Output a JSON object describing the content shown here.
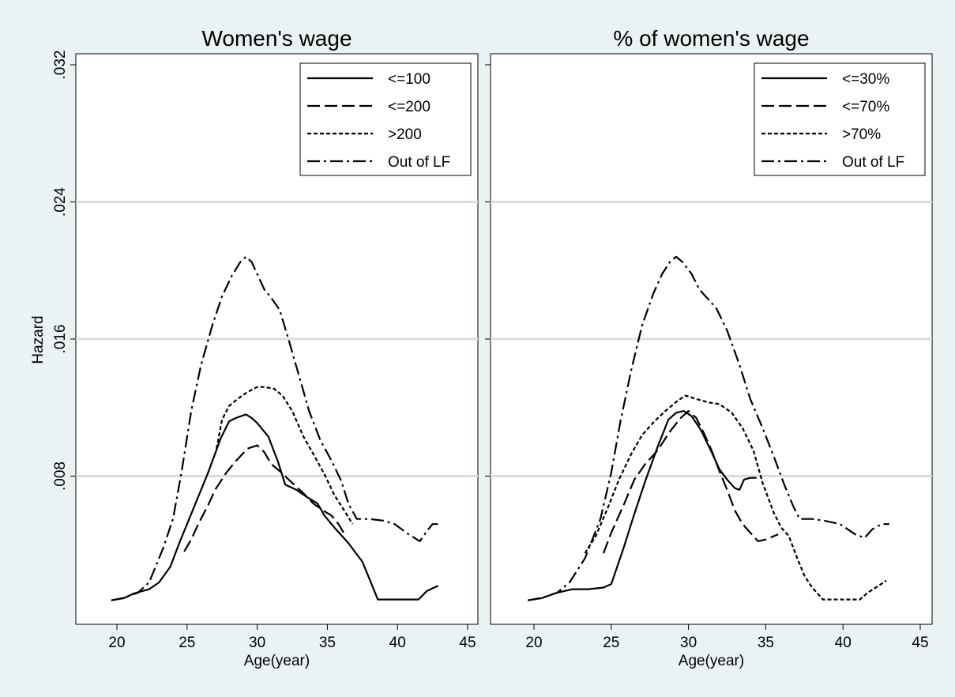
{
  "chart_data": [
    {
      "type": "line",
      "title": "Women's wage",
      "xlabel": "Age(year)",
      "ylabel": "Hazard",
      "xlim": [
        17.5,
        45.5
      ],
      "ylim": [
        0,
        0.0325
      ],
      "xticks": [
        20,
        25,
        30,
        35,
        40,
        45
      ],
      "xtick_labels": [
        "20",
        "25",
        "30",
        "35",
        "40",
        "45"
      ],
      "yticks": [
        0.008,
        0.016,
        0.024,
        0.032
      ],
      "ytick_labels": [
        ".008",
        ".016",
        ".024",
        ".032"
      ],
      "grid": true,
      "legend_position": "top-right",
      "series": [
        {
          "name": "<=100",
          "style": "solid",
          "points": [
            [
              19.6,
              0.00075
            ],
            [
              20.5,
              0.00088
            ],
            [
              21.2,
              0.00115
            ],
            [
              22.3,
              0.0014
            ],
            [
              23.0,
              0.0018
            ],
            [
              23.8,
              0.0027
            ],
            [
              24.5,
              0.0042
            ],
            [
              25.5,
              0.0062
            ],
            [
              26.5,
              0.0082
            ],
            [
              27.4,
              0.0102
            ],
            [
              28.0,
              0.0112
            ],
            [
              28.5,
              0.0114
            ],
            [
              29.2,
              0.0116
            ],
            [
              29.6,
              0.0114
            ],
            [
              30.0,
              0.0111
            ],
            [
              30.8,
              0.0103
            ],
            [
              31.5,
              0.0088
            ],
            [
              32.0,
              0.0075
            ],
            [
              32.8,
              0.0072
            ],
            [
              33.5,
              0.0068
            ],
            [
              34.3,
              0.0064
            ],
            [
              34.8,
              0.0057
            ],
            [
              35.5,
              0.005
            ],
            [
              36.5,
              0.0041
            ],
            [
              37.5,
              0.003
            ],
            [
              38.0,
              0.002
            ],
            [
              38.6,
              0.0008
            ],
            [
              39.5,
              0.0008
            ],
            [
              40.5,
              0.0008
            ],
            [
              41.5,
              0.0008
            ],
            [
              42.1,
              0.0013
            ],
            [
              42.9,
              0.0016
            ]
          ]
        },
        {
          "name": "<=200",
          "style": "dashed",
          "points": [
            [
              24.8,
              0.0036
            ],
            [
              25.3,
              0.0043
            ],
            [
              25.8,
              0.0052
            ],
            [
              26.5,
              0.0063
            ],
            [
              27.0,
              0.0072
            ],
            [
              27.8,
              0.0082
            ],
            [
              28.5,
              0.0089
            ],
            [
              29.3,
              0.0096
            ],
            [
              30.0,
              0.0098
            ],
            [
              30.5,
              0.0094
            ],
            [
              31.0,
              0.0087
            ],
            [
              31.6,
              0.0083
            ],
            [
              32.5,
              0.0076
            ],
            [
              33.3,
              0.007
            ],
            [
              34.0,
              0.0064
            ],
            [
              34.7,
              0.006
            ],
            [
              35.3,
              0.0057
            ],
            [
              35.8,
              0.0052
            ],
            [
              36.3,
              0.0045
            ]
          ]
        },
        {
          "name": ">200",
          "style": "dotted",
          "points": [
            [
              27.1,
              0.0096
            ],
            [
              27.5,
              0.0113
            ],
            [
              28.0,
              0.0121
            ],
            [
              28.6,
              0.0125
            ],
            [
              29.3,
              0.0129
            ],
            [
              30.0,
              0.0132
            ],
            [
              30.5,
              0.0132
            ],
            [
              31.2,
              0.0131
            ],
            [
              31.8,
              0.0127
            ],
            [
              32.5,
              0.0118
            ],
            [
              33.3,
              0.0103
            ],
            [
              34.0,
              0.0093
            ],
            [
              34.8,
              0.0081
            ],
            [
              35.5,
              0.0069
            ],
            [
              36.2,
              0.006
            ],
            [
              36.8,
              0.0052
            ]
          ]
        },
        {
          "name": "Out of LF",
          "style": "dashdot",
          "points": [
            [
              19.6,
              0.00075
            ],
            [
              20.5,
              0.0009
            ],
            [
              21.5,
              0.0012
            ],
            [
              22.3,
              0.0018
            ],
            [
              23.3,
              0.0038
            ],
            [
              24.0,
              0.0055
            ],
            [
              24.6,
              0.0082
            ],
            [
              25.3,
              0.0118
            ],
            [
              26.0,
              0.0145
            ],
            [
              26.8,
              0.0168
            ],
            [
              27.5,
              0.0185
            ],
            [
              28.2,
              0.0197
            ],
            [
              28.8,
              0.0205
            ],
            [
              29.2,
              0.0208
            ],
            [
              29.6,
              0.0205
            ],
            [
              30.0,
              0.0198
            ],
            [
              30.5,
              0.0189
            ],
            [
              31.0,
              0.0184
            ],
            [
              31.6,
              0.0177
            ],
            [
              32.3,
              0.0158
            ],
            [
              33.0,
              0.0138
            ],
            [
              33.7,
              0.0118
            ],
            [
              34.5,
              0.0101
            ],
            [
              35.3,
              0.0089
            ],
            [
              36.0,
              0.0077
            ],
            [
              36.5,
              0.0064
            ],
            [
              37.1,
              0.0055
            ],
            [
              38.0,
              0.0055
            ],
            [
              39.0,
              0.0054
            ],
            [
              39.8,
              0.0052
            ],
            [
              40.8,
              0.0046
            ],
            [
              41.6,
              0.0042
            ],
            [
              42.1,
              0.0048
            ],
            [
              42.5,
              0.0052
            ],
            [
              43.0,
              0.0052
            ]
          ]
        }
      ]
    },
    {
      "type": "line",
      "title": "% of women's wage",
      "xlabel": "Age(year)",
      "ylabel": "",
      "xlim": [
        17.5,
        45.5
      ],
      "ylim": [
        0,
        0.0325
      ],
      "xticks": [
        20,
        25,
        30,
        35,
        40,
        45
      ],
      "xtick_labels": [
        "20",
        "25",
        "30",
        "35",
        "40",
        "45"
      ],
      "yticks": [
        0.008,
        0.016,
        0.024,
        0.032
      ],
      "grid": true,
      "legend_position": "top-right",
      "series": [
        {
          "name": "<=30%",
          "style": "solid",
          "points": [
            [
              19.6,
              0.00075
            ],
            [
              20.5,
              0.00088
            ],
            [
              21.5,
              0.0012
            ],
            [
              22.5,
              0.0014
            ],
            [
              23.5,
              0.0014
            ],
            [
              24.5,
              0.0015
            ],
            [
              25.0,
              0.0017
            ],
            [
              25.8,
              0.0038
            ],
            [
              26.5,
              0.0058
            ],
            [
              27.2,
              0.0077
            ],
            [
              28.0,
              0.0097
            ],
            [
              28.7,
              0.0113
            ],
            [
              29.2,
              0.0117
            ],
            [
              29.7,
              0.0118
            ],
            [
              30.2,
              0.0115
            ],
            [
              30.8,
              0.0107
            ],
            [
              31.5,
              0.0094
            ],
            [
              32.0,
              0.0084
            ],
            [
              32.5,
              0.0078
            ],
            [
              33.0,
              0.0073
            ],
            [
              33.3,
              0.0072
            ],
            [
              33.6,
              0.0078
            ],
            [
              34.0,
              0.0079
            ],
            [
              34.4,
              0.0079
            ]
          ]
        },
        {
          "name": "<=70%",
          "style": "dashed",
          "points": [
            [
              24.5,
              0.0035
            ],
            [
              25.0,
              0.0047
            ],
            [
              25.8,
              0.0063
            ],
            [
              26.5,
              0.0078
            ],
            [
              27.2,
              0.0087
            ],
            [
              28.0,
              0.0095
            ],
            [
              28.8,
              0.0106
            ],
            [
              29.5,
              0.0114
            ],
            [
              30.0,
              0.0118
            ],
            [
              30.5,
              0.0114
            ],
            [
              31.0,
              0.0105
            ],
            [
              31.5,
              0.0095
            ],
            [
              32.0,
              0.0083
            ],
            [
              32.5,
              0.0072
            ],
            [
              33.0,
              0.006
            ],
            [
              33.5,
              0.0052
            ],
            [
              34.0,
              0.0047
            ],
            [
              34.5,
              0.0042
            ],
            [
              35.0,
              0.0043
            ],
            [
              35.8,
              0.0046
            ]
          ]
        },
        {
          "name": ">70%",
          "style": "dotted",
          "points": [
            [
              23.3,
              0.0035
            ],
            [
              24.0,
              0.0045
            ],
            [
              24.8,
              0.0062
            ],
            [
              25.5,
              0.0078
            ],
            [
              26.3,
              0.0093
            ],
            [
              27.0,
              0.0104
            ],
            [
              27.8,
              0.0112
            ],
            [
              28.5,
              0.0118
            ],
            [
              29.3,
              0.0124
            ],
            [
              29.8,
              0.0127
            ],
            [
              30.5,
              0.0125
            ],
            [
              31.3,
              0.0123
            ],
            [
              32.0,
              0.0122
            ],
            [
              32.8,
              0.0117
            ],
            [
              33.5,
              0.0108
            ],
            [
              34.2,
              0.0095
            ],
            [
              34.8,
              0.0076
            ],
            [
              35.5,
              0.0059
            ],
            [
              36.0,
              0.005
            ],
            [
              36.5,
              0.0045
            ],
            [
              37.0,
              0.0033
            ],
            [
              37.5,
              0.0022
            ],
            [
              38.0,
              0.0015
            ],
            [
              38.7,
              0.0008
            ],
            [
              39.5,
              0.0008
            ],
            [
              40.5,
              0.0008
            ],
            [
              41.1,
              0.0008
            ],
            [
              41.6,
              0.0012
            ],
            [
              42.3,
              0.0016
            ],
            [
              42.8,
              0.0019
            ]
          ]
        },
        {
          "name": "Out of LF",
          "style": "dashdot",
          "points": [
            [
              19.6,
              0.00075
            ],
            [
              20.5,
              0.0009
            ],
            [
              21.5,
              0.0012
            ],
            [
              22.3,
              0.0018
            ],
            [
              23.3,
              0.0032
            ],
            [
              24.3,
              0.0055
            ],
            [
              25.0,
              0.0082
            ],
            [
              25.6,
              0.0112
            ],
            [
              26.3,
              0.0142
            ],
            [
              27.0,
              0.0168
            ],
            [
              27.7,
              0.0186
            ],
            [
              28.3,
              0.0198
            ],
            [
              28.8,
              0.0205
            ],
            [
              29.2,
              0.0208
            ],
            [
              29.6,
              0.0205
            ],
            [
              30.2,
              0.0198
            ],
            [
              30.7,
              0.0189
            ],
            [
              31.3,
              0.0183
            ],
            [
              31.8,
              0.0178
            ],
            [
              32.5,
              0.0165
            ],
            [
              33.3,
              0.0145
            ],
            [
              34.0,
              0.0125
            ],
            [
              34.8,
              0.0108
            ],
            [
              35.5,
              0.0092
            ],
            [
              36.2,
              0.0075
            ],
            [
              36.8,
              0.0062
            ],
            [
              37.2,
              0.0055
            ],
            [
              38.0,
              0.0055
            ],
            [
              38.8,
              0.0054
            ],
            [
              39.8,
              0.0052
            ],
            [
              40.8,
              0.0046
            ],
            [
              41.4,
              0.0044
            ],
            [
              41.9,
              0.0049
            ],
            [
              42.5,
              0.0052
            ],
            [
              43.0,
              0.0052
            ]
          ]
        }
      ]
    }
  ]
}
